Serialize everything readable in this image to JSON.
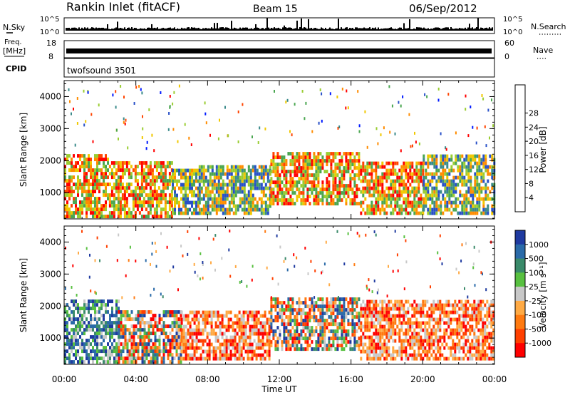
{
  "header": {
    "station": "Rankin Inlet (fitACF)",
    "beam": "Beam 15",
    "date": "06/Sep/2012"
  },
  "top_strips": {
    "nsky": {
      "label": "N.Sky",
      "ticks_left": [
        "10^5",
        "10^0"
      ],
      "ticks_right": [
        "10^5",
        "10^0"
      ],
      "right_label": "N.Search"
    },
    "freq": {
      "label_line1": "Freq.",
      "label_line2": "[MHz]",
      "ticks_left": [
        "18",
        "8"
      ],
      "ticks_right": [
        "60",
        "0"
      ],
      "right_label": "Nave"
    },
    "cpid": {
      "label": "CPID",
      "value": "twofsound 3501"
    }
  },
  "chart_data": [
    {
      "type": "heatmap",
      "title": "",
      "xlabel": "",
      "ylabel": "Slant Range [km]",
      "yticks": [
        "1000",
        "2000",
        "3000",
        "4000"
      ],
      "ylim": [
        180,
        4500
      ],
      "xlim_hours": [
        0,
        24
      ],
      "colorbar": {
        "label": "Power [dB]",
        "ticks": [
          "4",
          "8",
          "12",
          "16",
          "20",
          "24",
          "28"
        ],
        "colors": [
          "#0019ff",
          "#2850c8",
          "#3a8a8a",
          "#4aa650",
          "#9acd32",
          "#f0c800",
          "#ff8c00",
          "#ff4400",
          "#ff0000"
        ]
      },
      "echo_bands": [
        {
          "start": 0.0,
          "end": 2.5,
          "low": 200,
          "high": 2100,
          "level": "high"
        },
        {
          "start": 2.5,
          "end": 6.0,
          "low": 200,
          "high": 1900,
          "level": "high"
        },
        {
          "start": 6.0,
          "end": 7.5,
          "low": 300,
          "high": 1700,
          "level": "mid"
        },
        {
          "start": 7.5,
          "end": 11.5,
          "low": 300,
          "high": 1800,
          "level": "mid"
        },
        {
          "start": 11.5,
          "end": 16.5,
          "low": 600,
          "high": 2200,
          "level": "high"
        },
        {
          "start": 16.5,
          "end": 20.0,
          "low": 300,
          "high": 1900,
          "level": "high"
        },
        {
          "start": 20.0,
          "end": 24.0,
          "low": 300,
          "high": 2100,
          "level": "mid"
        }
      ]
    },
    {
      "type": "heatmap",
      "title": "",
      "xlabel": "Time UT",
      "ylabel": "Slant Range [km]",
      "yticks": [
        "1000",
        "2000",
        "3000",
        "4000"
      ],
      "xticks": [
        "00:00",
        "04:00",
        "08:00",
        "12:00",
        "16:00",
        "20:00",
        "00:00"
      ],
      "ylim": [
        180,
        4500
      ],
      "xlim_hours": [
        0,
        24
      ],
      "colorbar": {
        "label": "Velocity [m s⁻¹]",
        "ticks": [
          "1000",
          "500",
          "100",
          "25",
          "-25",
          "-100",
          "-500",
          "-1000"
        ],
        "colors": [
          "#1f3aa0",
          "#2a6aa8",
          "#3a8a6a",
          "#58c040",
          "#c8c8c8",
          "#ffaa44",
          "#ff7a10",
          "#ff4000",
          "#ff0000"
        ]
      },
      "echo_bands": [
        {
          "start": 0.0,
          "end": 3.0,
          "low": 200,
          "high": 2100,
          "level": "positive"
        },
        {
          "start": 3.0,
          "end": 6.5,
          "low": 200,
          "high": 1800,
          "level": "mixed"
        },
        {
          "start": 6.5,
          "end": 11.5,
          "low": 300,
          "high": 1800,
          "level": "negative"
        },
        {
          "start": 11.5,
          "end": 16.5,
          "low": 600,
          "high": 2200,
          "level": "mixed"
        },
        {
          "start": 16.5,
          "end": 24.0,
          "low": 300,
          "high": 2100,
          "level": "negative"
        }
      ]
    }
  ]
}
